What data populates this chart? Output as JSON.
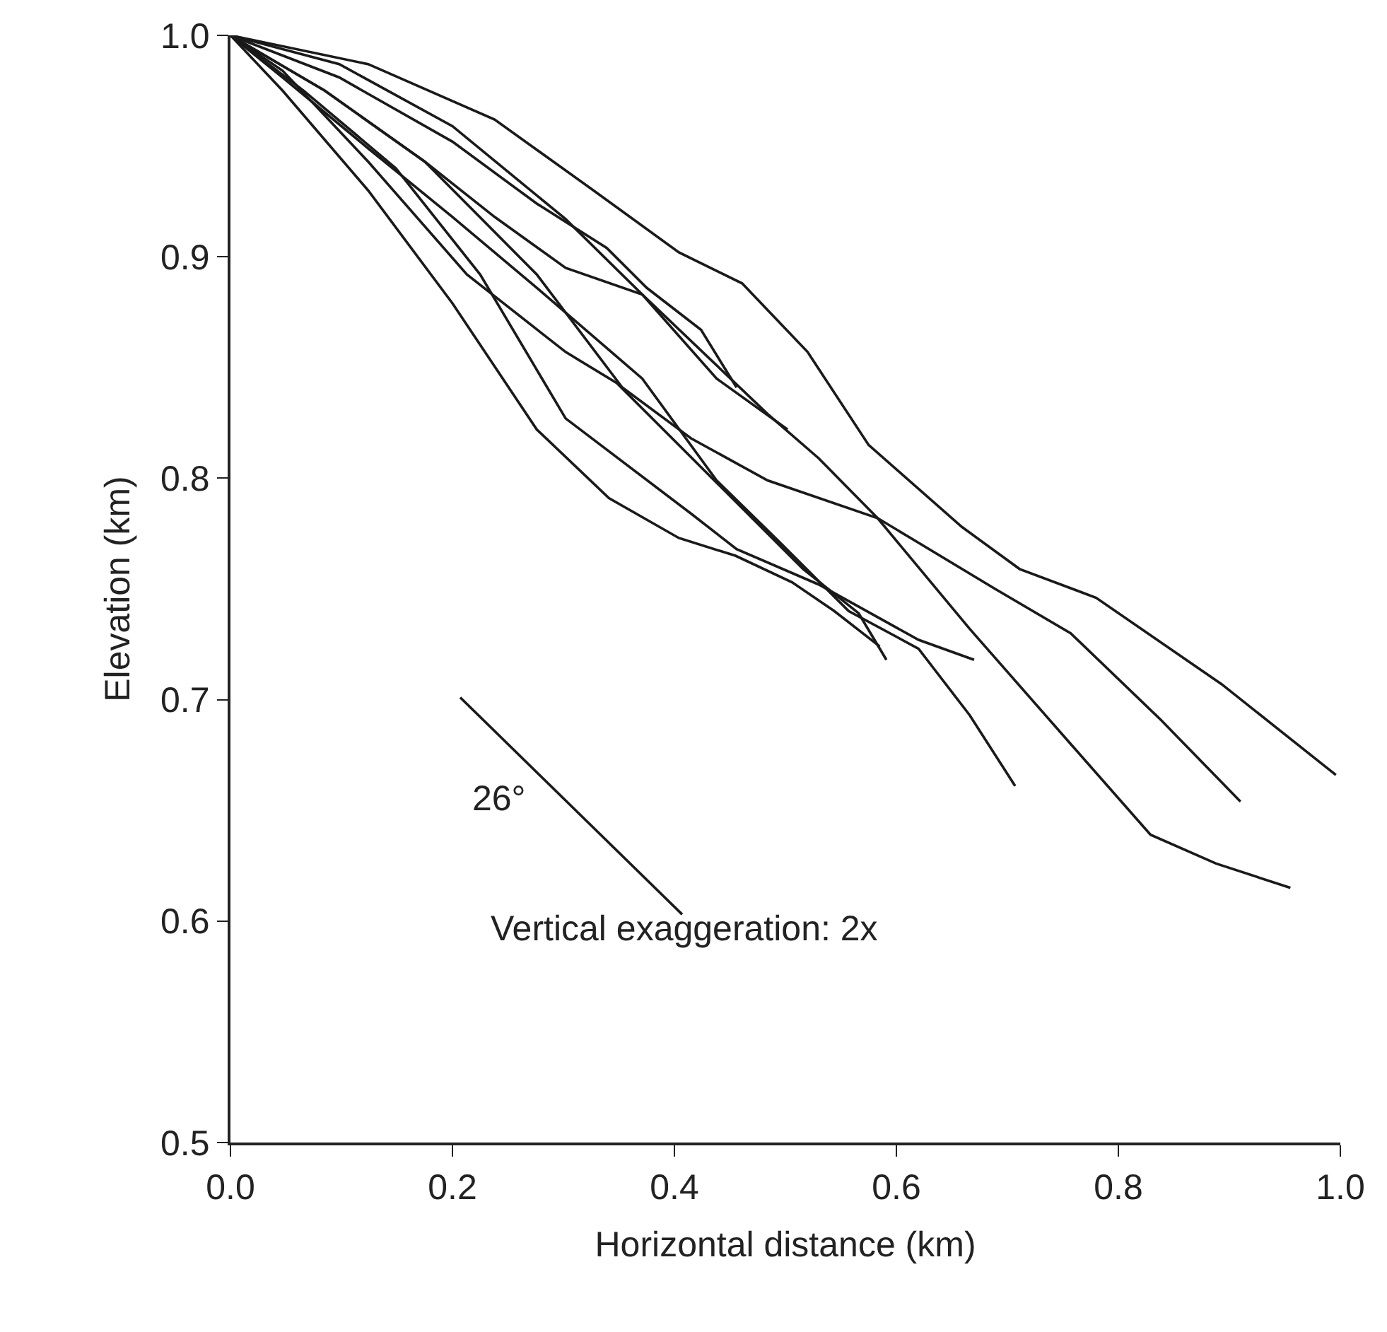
{
  "chart_data": {
    "type": "line",
    "xlabel": "Horizontal distance (km)",
    "ylabel": "Elevation (km)",
    "xlim": [
      0,
      1.0
    ],
    "ylim": [
      0.5,
      1.0
    ],
    "marker": "none",
    "line_style": "solid",
    "xticks": [
      {
        "value": 0,
        "label": "0.0"
      },
      0.2,
      0.4,
      0.6,
      0.8,
      {
        "value": 1.0,
        "label": "1.0"
      }
    ],
    "yticks": [
      0.5,
      0.6,
      0.7,
      0.8,
      0.9,
      {
        "value": 1.0,
        "label": "1.0"
      }
    ],
    "series": [
      {
        "color": "#1a1a1a",
        "x": [
          0,
          0.124,
          0.238,
          0.327,
          0.404,
          0.461,
          0.52,
          0.575,
          0.659,
          0.711,
          0.78,
          0.893,
          0.996
        ],
        "values": [
          1.0,
          0.987,
          0.962,
          0.93,
          0.902,
          0.888,
          0.857,
          0.815,
          0.778,
          0.759,
          0.746,
          0.707,
          0.666
        ]
      },
      {
        "color": "#1a1a1a",
        "x": [
          0,
          0.098,
          0.2,
          0.302,
          0.371,
          0.484,
          0.53,
          0.583,
          0.666,
          0.757,
          0.829,
          0.888,
          0.955
        ],
        "values": [
          1.0,
          0.987,
          0.959,
          0.917,
          0.883,
          0.829,
          0.809,
          0.782,
          0.732,
          0.68,
          0.639,
          0.626,
          0.615
        ]
      },
      {
        "color": "#1a1a1a",
        "x": [
          0,
          0.085,
          0.175,
          0.276,
          0.353,
          0.415,
          0.484,
          0.583,
          0.689,
          0.757,
          0.838,
          0.91
        ],
        "values": [
          1.0,
          0.975,
          0.943,
          0.892,
          0.841,
          0.818,
          0.799,
          0.782,
          0.75,
          0.73,
          0.691,
          0.654
        ]
      },
      {
        "color": "#1a1a1a",
        "x": [
          0,
          0.047,
          0.124,
          0.2,
          0.276,
          0.371,
          0.438,
          0.493,
          0.557,
          0.62,
          0.666,
          0.707
        ],
        "values": [
          1.0,
          0.981,
          0.949,
          0.918,
          0.886,
          0.845,
          0.799,
          0.772,
          0.74,
          0.723,
          0.693,
          0.661
        ]
      },
      {
        "color": "#1a1a1a",
        "x": [
          0,
          0.066,
          0.149,
          0.225,
          0.302,
          0.415,
          0.456,
          0.53,
          0.62,
          0.67
        ],
        "values": [
          1.0,
          0.975,
          0.94,
          0.892,
          0.827,
          0.784,
          0.768,
          0.752,
          0.727,
          0.718
        ]
      },
      {
        "color": "#1a1a1a",
        "x": [
          0,
          0.047,
          0.124,
          0.213,
          0.302,
          0.348,
          0.438,
          0.516,
          0.566,
          0.591
        ],
        "values": [
          1.0,
          0.984,
          0.943,
          0.892,
          0.857,
          0.843,
          0.798,
          0.759,
          0.739,
          0.718
        ]
      },
      {
        "color": "#1a1a1a",
        "x": [
          0,
          0.047,
          0.124,
          0.2,
          0.276,
          0.341,
          0.404,
          0.455,
          0.506,
          0.544,
          0.585
        ],
        "values": [
          1.0,
          0.975,
          0.93,
          0.879,
          0.822,
          0.791,
          0.773,
          0.765,
          0.753,
          0.74,
          0.724
        ]
      },
      {
        "color": "#1a1a1a",
        "x": [
          0,
          0.085,
          0.175,
          0.238,
          0.302,
          0.371,
          0.438,
          0.502
        ],
        "values": [
          1.0,
          0.975,
          0.943,
          0.918,
          0.895,
          0.883,
          0.845,
          0.822
        ]
      },
      {
        "color": "#1a1a1a",
        "x": [
          0,
          0.098,
          0.2,
          0.276,
          0.339,
          0.375,
          0.424,
          0.456
        ],
        "values": [
          1.0,
          0.981,
          0.952,
          0.924,
          0.904,
          0.886,
          0.867,
          0.841
        ]
      },
      {
        "color": "#1a1a1a",
        "x": [
          0.207,
          0.407
        ],
        "values": [
          0.701,
          0.603
        ]
      }
    ],
    "annotations": [
      "26°",
      "Vertical exaggeration: 2x"
    ]
  }
}
